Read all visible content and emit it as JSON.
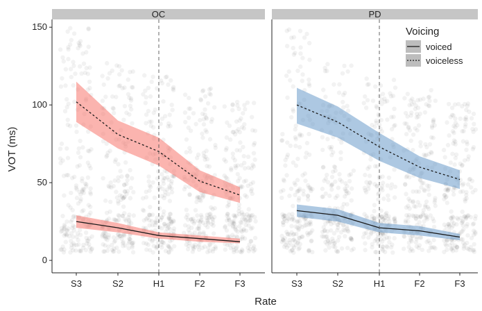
{
  "chart_data": {
    "type": "line",
    "xlabel": "Rate",
    "ylabel": "VOT (ms)",
    "categories": [
      "S3",
      "S2",
      "H1",
      "F2",
      "F3"
    ],
    "ylim": [
      -8,
      155
    ],
    "yticks": [
      0,
      50,
      100,
      150
    ],
    "reference_line": {
      "x": "H1",
      "style": "dashed"
    },
    "legend": {
      "title": "Voicing",
      "placement": "top-right",
      "entries": [
        {
          "label": "voiced",
          "linestyle": "solid"
        },
        {
          "label": "voiceless",
          "linestyle": "dotted"
        }
      ]
    },
    "panels": [
      {
        "title": "OC",
        "ribbon_color": "#F8766D",
        "series": [
          {
            "name": "voiceless",
            "values": [
              102,
              81,
              70,
              51,
              42
            ],
            "lower": [
              89,
              72,
              61,
              44,
              37
            ],
            "upper": [
              115,
              90,
              79,
              58,
              47
            ]
          },
          {
            "name": "voiced",
            "values": [
              25,
              21,
              16,
              14,
              12
            ],
            "lower": [
              21,
              18,
              14,
              12,
              11
            ],
            "upper": [
              29,
              24,
              18,
              16,
              14
            ]
          }
        ]
      },
      {
        "title": "PD",
        "ribbon_color": "#6A9ACB",
        "series": [
          {
            "name": "voiceless",
            "values": [
              100,
              89,
              73,
              60,
              52
            ],
            "lower": [
              88,
              79,
              64,
              53,
              46
            ],
            "upper": [
              111,
              99,
              82,
              67,
              58
            ]
          },
          {
            "name": "voiced",
            "values": [
              32,
              29,
              21,
              19,
              15
            ],
            "lower": [
              28,
              25,
              18,
              16,
              13
            ],
            "upper": [
              36,
              33,
              24,
              22,
              17
            ]
          }
        ]
      }
    ],
    "grid": false,
    "raw_points": "jittered grey points behind each category"
  }
}
